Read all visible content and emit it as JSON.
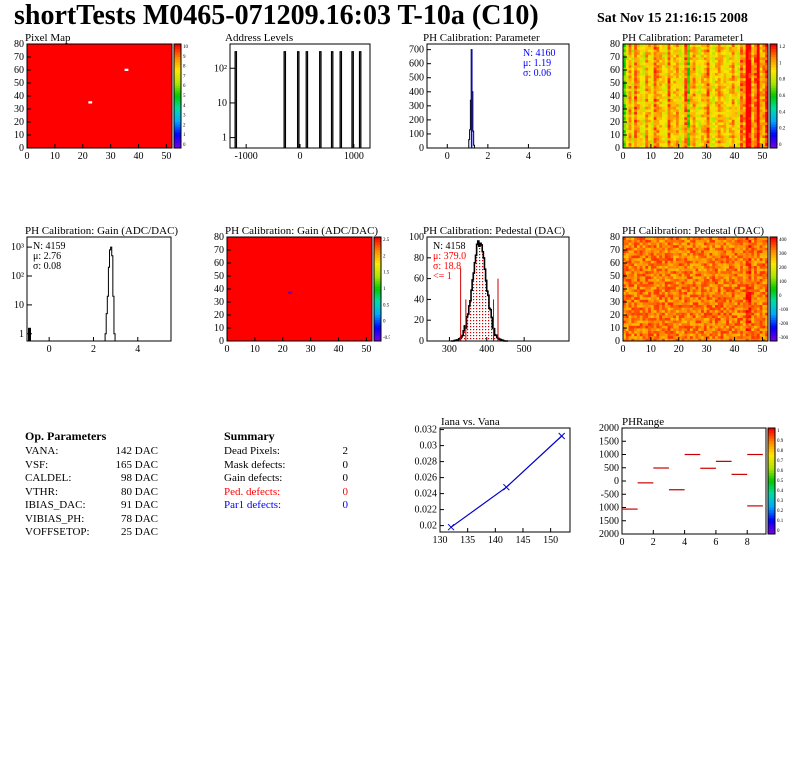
{
  "header": {
    "title": "shortTests M0465-071209.16:03 T-10a (C10)",
    "date": "Sat Nov 15 21:16:15 2008"
  },
  "colors": {
    "heat_red": "#ff0000",
    "hist_blue": "#0000ff",
    "stats_blue": "#0000ff",
    "stats_red": "#ff0000",
    "plot_line_red": "#cc0000",
    "fit_curve_blue": "#0000cc",
    "pedestal_hatch_red": "#cc0000"
  },
  "op_params": {
    "heading": "Op. Parameters",
    "rows": [
      {
        "name": "VANA:",
        "value": "142 DAC"
      },
      {
        "name": "VSF:",
        "value": "165 DAC"
      },
      {
        "name": "CALDEL:",
        "value": "98 DAC"
      },
      {
        "name": "VTHR:",
        "value": "80 DAC"
      },
      {
        "name": "IBIAS_DAC:",
        "value": "91 DAC"
      },
      {
        "name": "VIBIAS_PH:",
        "value": "78 DAC"
      },
      {
        "name": "VOFFSETOP:",
        "value": "25 DAC"
      }
    ]
  },
  "summary": {
    "heading": "Summary",
    "rows": [
      {
        "name": "Dead Pixels:",
        "value": "2",
        "color": "#000000"
      },
      {
        "name": "Mask defects:",
        "value": "0",
        "color": "#000000"
      },
      {
        "name": "Gain defects:",
        "value": "0",
        "color": "#000000"
      },
      {
        "name": "Ped. defects:",
        "value": "0",
        "color": "#ff0000"
      },
      {
        "name": "Par1 defects:",
        "value": "0",
        "color": "#0000ff"
      }
    ]
  },
  "chart_data": [
    {
      "id": "pixel-map",
      "type": "heatmap",
      "title": "Pixel Map",
      "x_ticks": [
        "0",
        "10",
        "20",
        "30",
        "40",
        "50"
      ],
      "y_ticks": [
        "0",
        "10",
        "20",
        "30",
        "40",
        "50",
        "60",
        "70",
        "80"
      ],
      "xlim": [
        0,
        52
      ],
      "ylim": [
        0,
        80
      ],
      "fill_value": 10,
      "colorbar_ticks": [
        "10",
        "9",
        "8",
        "7",
        "6",
        "5",
        "4",
        "3",
        "2",
        "1",
        "0"
      ],
      "special_pixels": [
        {
          "x": 22,
          "y": 35,
          "value": 0
        },
        {
          "x": 35,
          "y": 60,
          "value": 0
        }
      ]
    },
    {
      "id": "address-levels",
      "type": "bar",
      "title": "Address Levels",
      "yscale": "log",
      "x_ticks": [
        "-1000",
        "0",
        "1000"
      ],
      "y_ticks": [
        "1",
        "10",
        "10²"
      ],
      "xlim": [
        -1300,
        1300
      ],
      "peaks": [
        -1190,
        -280,
        -30,
        130,
        380,
        600,
        760,
        980,
        1120
      ],
      "peak_height": 300
    },
    {
      "id": "ph-param",
      "type": "bar",
      "title": "PH Calibration: Parameter",
      "x_ticks": [
        "0",
        "2",
        "4",
        "6"
      ],
      "y_ticks": [
        "0",
        "100",
        "200",
        "300",
        "400",
        "500",
        "600",
        "700"
      ],
      "xlim": [
        -1,
        6
      ],
      "ylim": [
        0,
        740
      ],
      "stats": [
        {
          "text": "N: 4160",
          "color": "#0000ff"
        },
        {
          "text": "μ: 1.19",
          "color": "#0000ff"
        },
        {
          "text": "σ: 0.06",
          "color": "#0000ff"
        }
      ],
      "bins": [
        {
          "x": 1.08,
          "y": 60
        },
        {
          "x": 1.12,
          "y": 130
        },
        {
          "x": 1.16,
          "y": 340
        },
        {
          "x": 1.2,
          "y": 700
        },
        {
          "x": 1.24,
          "y": 400
        },
        {
          "x": 1.28,
          "y": 120
        },
        {
          "x": 1.32,
          "y": 20
        }
      ]
    },
    {
      "id": "ph-param1",
      "type": "heatmap",
      "title": "PH Calibration: Parameter1",
      "x_ticks": [
        "0",
        "10",
        "20",
        "30",
        "40",
        "50"
      ],
      "y_ticks": [
        "0",
        "10",
        "20",
        "30",
        "40",
        "50",
        "60",
        "70",
        "80"
      ],
      "xlim": [
        0,
        52
      ],
      "ylim": [
        0,
        80
      ],
      "colorbar_ticks": [
        "1.2",
        "1",
        "0.8",
        "0.6",
        "0.4",
        "0.2",
        "0"
      ],
      "column_profile": [
        0.55,
        0.7,
        0.85,
        0.7,
        0.9,
        0.8,
        0.75,
        0.7,
        0.85,
        0.8,
        0.72,
        0.9,
        0.85,
        0.8,
        0.75,
        0.7,
        0.9,
        0.78,
        0.8,
        0.85,
        0.7,
        0.75,
        0.9,
        0.55,
        0.8,
        0.85,
        0.75,
        0.7,
        0.8,
        0.82,
        0.9,
        0.75,
        0.7,
        0.8,
        0.85,
        0.8,
        0.78,
        0.72,
        0.8,
        0.85,
        0.75,
        0.7,
        0.9,
        0.85,
        1.25,
        1.0,
        0.8,
        0.9,
        1.05,
        0.82,
        0.85,
        0.95
      ]
    },
    {
      "id": "gain-hist",
      "type": "bar",
      "title": "PH Calibration: Gain (ADC/DAC)",
      "yscale": "log",
      "x_ticks": [
        "0",
        "2",
        "4"
      ],
      "y_ticks": [
        "1",
        "10",
        "10²",
        "10³"
      ],
      "xlim": [
        -1,
        5.5
      ],
      "stats": [
        {
          "text": "N: 4159",
          "color": "#000000"
        },
        {
          "text": "μ: 2.76",
          "color": "#000000"
        },
        {
          "text": "σ: 0.08",
          "color": "#000000"
        }
      ],
      "bins": [
        {
          "x": 2.55,
          "y": 1
        },
        {
          "x": 2.6,
          "y": 5
        },
        {
          "x": 2.65,
          "y": 20
        },
        {
          "x": 2.7,
          "y": 200
        },
        {
          "x": 2.75,
          "y": 800
        },
        {
          "x": 2.8,
          "y": 1000
        },
        {
          "x": 2.85,
          "y": 500
        },
        {
          "x": 2.9,
          "y": 20
        },
        {
          "x": 2.95,
          "y": 1
        }
      ]
    },
    {
      "id": "gain-map",
      "type": "heatmap",
      "title": "PH Calibration: Gain (ADC/DAC)",
      "x_ticks": [
        "0",
        "10",
        "20",
        "30",
        "40",
        "50"
      ],
      "y_ticks": [
        "0",
        "10",
        "20",
        "30",
        "40",
        "50",
        "60",
        "70",
        "80"
      ],
      "xlim": [
        0,
        52
      ],
      "ylim": [
        0,
        80
      ],
      "fill_value": 2.76,
      "colorbar_ticks": [
        "2.5",
        "2",
        "1.5",
        "1",
        "0.5",
        "0",
        "-0.5"
      ],
      "special_pixels": [
        {
          "x": 22,
          "y": 37,
          "value": 0
        }
      ]
    },
    {
      "id": "pedestal-hist",
      "type": "bar",
      "title": "PH Calibration: Pedestal (DAC)",
      "x_ticks": [
        "300",
        "400",
        "500"
      ],
      "y_ticks": [
        "0",
        "20",
        "40",
        "60",
        "80",
        "100"
      ],
      "xlim": [
        240,
        620
      ],
      "ylim": [
        0,
        100
      ],
      "stats": [
        {
          "text": "N: 4158",
          "color": "#000000"
        },
        {
          "text": "μ: 379.0",
          "color": "#ff0000"
        },
        {
          "text": "σ: 18.8",
          "color": "#ff0000"
        },
        {
          "text": "<= 1",
          "color": "#ff0000"
        }
      ],
      "mean": 379,
      "sigma": 18.8,
      "peak": 95,
      "cut_lines": [
        {
          "x": 330,
          "y": 70
        },
        {
          "x": 344,
          "y": 40
        },
        {
          "x": 418,
          "y": 40
        },
        {
          "x": 430,
          "y": 60
        }
      ]
    },
    {
      "id": "pedestal-map",
      "type": "heatmap",
      "title": "PH Calibration: Pedestal (DAC)",
      "x_ticks": [
        "0",
        "10",
        "20",
        "30",
        "40",
        "50"
      ],
      "y_ticks": [
        "0",
        "10",
        "20",
        "30",
        "40",
        "50",
        "60",
        "70",
        "80"
      ],
      "xlim": [
        0,
        52
      ],
      "ylim": [
        0,
        80
      ],
      "colorbar_ticks": [
        "400",
        "300",
        "200",
        "100",
        "0",
        "-100",
        "-200",
        "-300"
      ]
    },
    {
      "id": "iana-vs-vana",
      "type": "line",
      "title": "Iana vs. Vana",
      "x_ticks": [
        "130",
        "135",
        "140",
        "145",
        "150"
      ],
      "y_ticks": [
        "0.02",
        "0.022",
        "0.024",
        "0.026",
        "0.028",
        "0.03",
        "0.032"
      ],
      "xlim": [
        130,
        153.5
      ],
      "ylim": [
        0.0192,
        0.0322
      ],
      "x": [
        132,
        142,
        152
      ],
      "y": [
        0.0198,
        0.0248,
        0.0312
      ]
    },
    {
      "id": "phrange",
      "type": "scatter",
      "title": "PHRange",
      "x_ticks": [
        "0",
        "2",
        "4",
        "6",
        "8"
      ],
      "y_ticks": [
        "2000",
        "1500",
        "1000",
        "500",
        "0",
        "-500",
        "1000",
        "1500",
        "2000"
      ],
      "xlim": [
        0,
        9.2
      ],
      "ylim": [
        -2000,
        2000
      ],
      "colorbar_ticks": [
        "1",
        "0.9",
        "0.8",
        "0.7",
        "0.6",
        "0.5",
        "0.4",
        "0.3",
        "0.2",
        "0.1",
        "0"
      ],
      "segments": [
        {
          "x": 0.5,
          "y": -1060
        },
        {
          "x": 1.5,
          "y": -70
        },
        {
          "x": 2.5,
          "y": 490
        },
        {
          "x": 3.5,
          "y": -330
        },
        {
          "x": 4.5,
          "y": 1000
        },
        {
          "x": 5.5,
          "y": 480
        },
        {
          "x": 6.5,
          "y": 740
        },
        {
          "x": 7.5,
          "y": 250
        },
        {
          "x": 8.5,
          "y": -940
        },
        {
          "x": 8.5,
          "y": 1000
        }
      ]
    }
  ]
}
